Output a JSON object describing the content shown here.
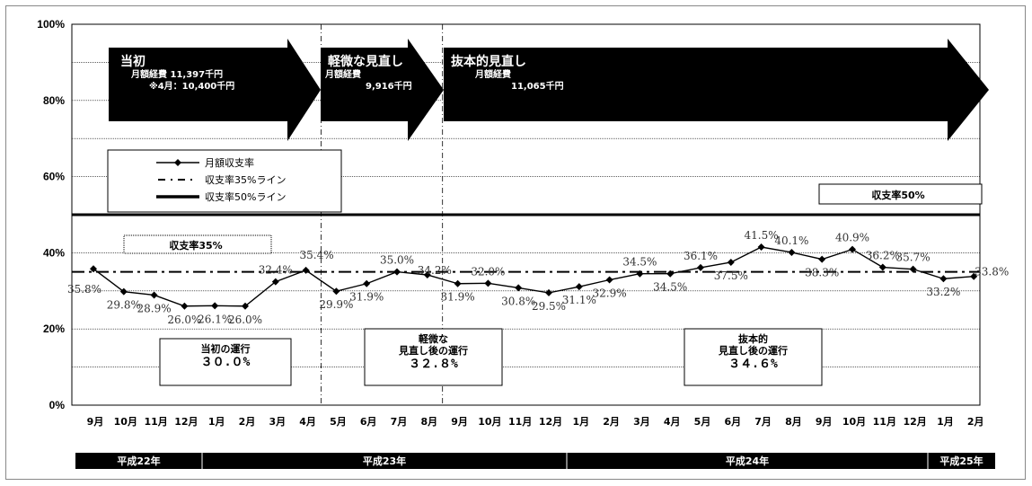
{
  "chart_data": {
    "type": "line",
    "ylim": [
      0,
      100
    ],
    "y_ticks": [
      "0%",
      "20%",
      "40%",
      "60%",
      "80%",
      "100%"
    ],
    "categories": [
      "9月",
      "10月",
      "11月",
      "12月",
      "1月",
      "2月",
      "3月",
      "4月",
      "5月",
      "6月",
      "7月",
      "8月",
      "9月",
      "10月",
      "11月",
      "12月",
      "1月",
      "2月",
      "3月",
      "4月",
      "5月",
      "6月",
      "7月",
      "8月",
      "9月",
      "10月",
      "11月",
      "12月",
      "1月",
      "2月"
    ],
    "series": [
      {
        "name": "月額収支率",
        "values": [
          35.8,
          29.8,
          28.9,
          26.0,
          26.1,
          26.0,
          32.4,
          35.4,
          29.9,
          31.9,
          35.0,
          34.2,
          31.9,
          32.0,
          30.8,
          29.5,
          31.1,
          32.9,
          34.5,
          34.5,
          36.1,
          37.5,
          41.5,
          40.1,
          38.3,
          40.9,
          36.2,
          35.7,
          33.2,
          33.8
        ],
        "labels": [
          "35.8%",
          "29.8%",
          "28.9%",
          "26.0%",
          "26.1%",
          "26.0%",
          "32.4%",
          "35.4%",
          "29.9%",
          "31.9%",
          "35.0%",
          "34.2%",
          "31.9%",
          "32.0%",
          "30.8%",
          "29.5%",
          "31.1%",
          "32.9%",
          "34.5%",
          "34.5%",
          "36.1%",
          "37.5%",
          "41.5%",
          "40.1%",
          "38.3%",
          "40.9%",
          "36.2%",
          "35.7%",
          "33.2%",
          "33.8%"
        ]
      }
    ],
    "reference_lines": [
      {
        "name": "収支率35%ライン",
        "value": 35,
        "style": "dash-dot"
      },
      {
        "name": "収支率50%ライン",
        "value": 50,
        "style": "solid-thick"
      }
    ],
    "reference_labels": {
      "line35": "収支率35%",
      "line50": "収支率50%"
    },
    "legend": {
      "placement": "upper-left",
      "items": [
        "月額収支率",
        "収支率35%ライン",
        "収支率50%ライン"
      ]
    },
    "eras": [
      "平成22年",
      "平成23年",
      "平成24年",
      "平成25年"
    ],
    "phases": [
      {
        "title": "当初",
        "lines": [
          "月額経費 11,397千円",
          "※4月：10,400千円"
        ]
      },
      {
        "title": "軽微な見直し",
        "lines": [
          "月額経費",
          "9,916千円"
        ]
      },
      {
        "title": "抜本的見直し",
        "lines": [
          "月額経費",
          "11,065千円"
        ]
      }
    ],
    "period_boxes": [
      {
        "lines": [
          "当初の運行"
        ],
        "pct": "３０.０%"
      },
      {
        "lines": [
          "軽微な",
          "見直し後の運行"
        ],
        "pct": "３２.８%"
      },
      {
        "lines": [
          "抜本的",
          "見直し後の運行"
        ],
        "pct": "３４.６%"
      }
    ]
  }
}
